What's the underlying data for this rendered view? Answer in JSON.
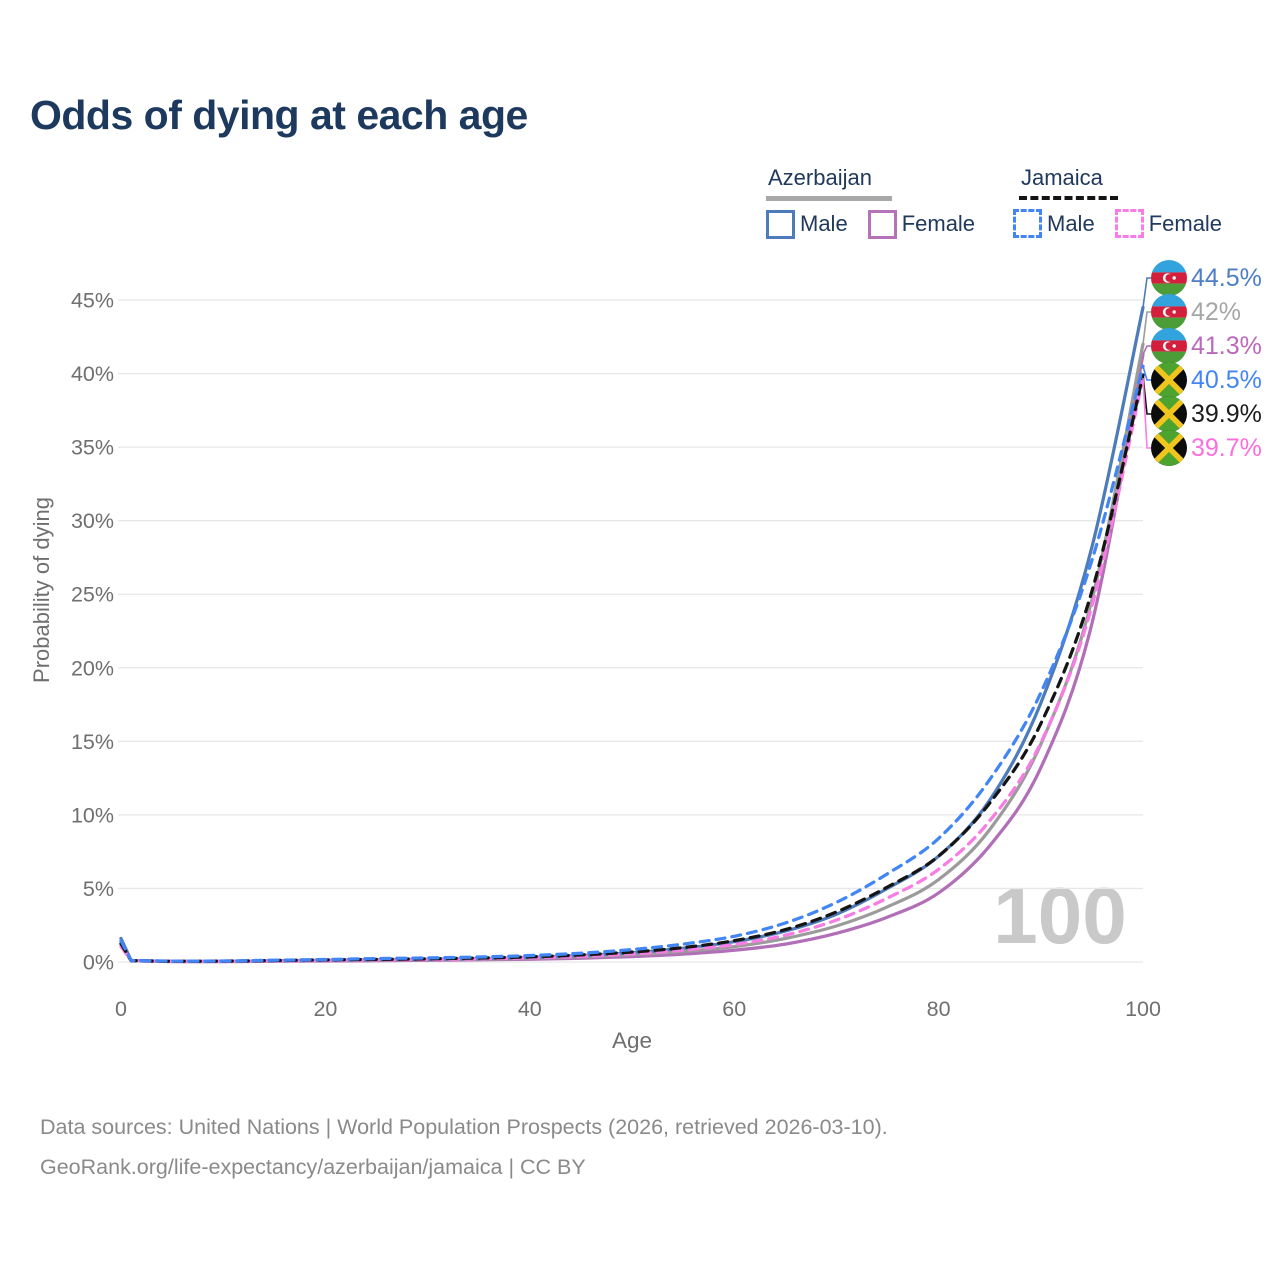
{
  "title": "Odds of dying at each age",
  "watermark_age": "100",
  "legend": {
    "groups": [
      {
        "country": "Azerbaijan",
        "line_style": "solid",
        "line_color": "#a8a8a8",
        "items": [
          {
            "label": "Male",
            "color": "#4e7bb9",
            "style": "solid"
          },
          {
            "label": "Female",
            "color": "#b472b8",
            "style": "solid"
          }
        ]
      },
      {
        "country": "Jamaica",
        "line_style": "dashed",
        "line_color": "#141414",
        "items": [
          {
            "label": "Male",
            "color": "#4285f4",
            "style": "dashed"
          },
          {
            "label": "Female",
            "color": "#fb7ce8",
            "style": "dashed"
          }
        ]
      }
    ]
  },
  "chart_data": {
    "type": "line",
    "title": "Odds of dying at each age",
    "xlabel": "Age",
    "ylabel": "Probability of dying",
    "xlim": [
      0,
      100
    ],
    "ylim_percent": [
      0,
      45
    ],
    "grid": "horizontal",
    "legend_position": "top-right",
    "x_ticks": [
      0,
      20,
      40,
      60,
      80,
      100
    ],
    "y_ticks_percent": [
      0,
      5,
      10,
      15,
      20,
      25,
      30,
      35,
      40,
      45
    ],
    "hover_age_indicator": "100",
    "x": [
      0,
      1,
      5,
      10,
      15,
      20,
      25,
      30,
      35,
      40,
      45,
      50,
      55,
      60,
      65,
      70,
      75,
      80,
      85,
      90,
      95,
      100
    ],
    "series": [
      {
        "name": "Azerbaijan Male",
        "country": "Azerbaijan",
        "sex": "male",
        "flag": "az",
        "color": "#4e7bb9",
        "dash": "solid",
        "values_percent": [
          1.6,
          0.1,
          0.05,
          0.05,
          0.08,
          0.12,
          0.16,
          0.19,
          0.23,
          0.31,
          0.44,
          0.63,
          0.93,
          1.38,
          2.1,
          3.25,
          5.0,
          7.2,
          11.0,
          17.6,
          28.2,
          44.5
        ],
        "end_label": "44.5%",
        "label_color": "#4d7ec4"
      },
      {
        "name": "Azerbaijan Both sexes",
        "country": "Azerbaijan",
        "sex": "combined",
        "flag": "az",
        "color": "#9b9b9b",
        "dash": "solid",
        "values_percent": [
          1.4,
          0.09,
          0.04,
          0.04,
          0.07,
          0.1,
          0.13,
          0.16,
          0.19,
          0.25,
          0.35,
          0.5,
          0.72,
          1.05,
          1.6,
          2.45,
          3.75,
          5.6,
          9.0,
          14.8,
          24.6,
          42.0
        ],
        "end_label": "42%",
        "label_color": "#a6a6a6"
      },
      {
        "name": "Azerbaijan Female",
        "country": "Azerbaijan",
        "sex": "female",
        "flag": "az",
        "color": "#b06fb6",
        "dash": "solid",
        "values_percent": [
          1.2,
          0.08,
          0.03,
          0.03,
          0.05,
          0.07,
          0.09,
          0.12,
          0.15,
          0.19,
          0.26,
          0.37,
          0.54,
          0.8,
          1.22,
          1.95,
          3.05,
          4.7,
          7.9,
          13.2,
          23.0,
          41.3
        ],
        "end_label": "41.3%",
        "label_color": "#bb68bd"
      },
      {
        "name": "Jamaica Male",
        "country": "Jamaica",
        "sex": "male",
        "flag": "jm",
        "color": "#4285f4",
        "dash": "dashed",
        "values_percent": [
          1.45,
          0.1,
          0.06,
          0.07,
          0.12,
          0.17,
          0.23,
          0.28,
          0.34,
          0.44,
          0.6,
          0.85,
          1.22,
          1.75,
          2.65,
          4.05,
          6.0,
          8.4,
          12.4,
          18.3,
          27.3,
          40.5
        ],
        "end_label": "40.5%",
        "label_color": "#4285f4"
      },
      {
        "name": "Jamaica Both sexes",
        "country": "Jamaica",
        "sex": "combined",
        "flag": "jm",
        "color": "#151515",
        "dash": "dashed",
        "values_percent": [
          1.25,
          0.09,
          0.05,
          0.06,
          0.1,
          0.14,
          0.18,
          0.22,
          0.27,
          0.35,
          0.48,
          0.68,
          0.98,
          1.45,
          2.2,
          3.4,
          5.1,
          7.2,
          10.8,
          16.2,
          25.2,
          39.9
        ],
        "end_label": "39.9%",
        "label_color": "#1c1c1c"
      },
      {
        "name": "Jamaica Female",
        "country": "Jamaica",
        "sex": "female",
        "flag": "jm",
        "color": "#f77ce4",
        "dash": "dashed",
        "values_percent": [
          1.05,
          0.08,
          0.04,
          0.05,
          0.08,
          0.11,
          0.14,
          0.17,
          0.21,
          0.28,
          0.38,
          0.55,
          0.8,
          1.18,
          1.82,
          2.85,
          4.35,
          6.3,
          9.6,
          14.9,
          24.2,
          39.7
        ],
        "end_label": "39.7%",
        "label_color": "#fc6ede"
      }
    ]
  },
  "footer": {
    "line1": "Data sources: United Nations | World Population Prospects (2026, retrieved 2026-03-10).",
    "line2": "GeoRank.org/life-expectancy/azerbaijan/jamaica | CC BY"
  }
}
